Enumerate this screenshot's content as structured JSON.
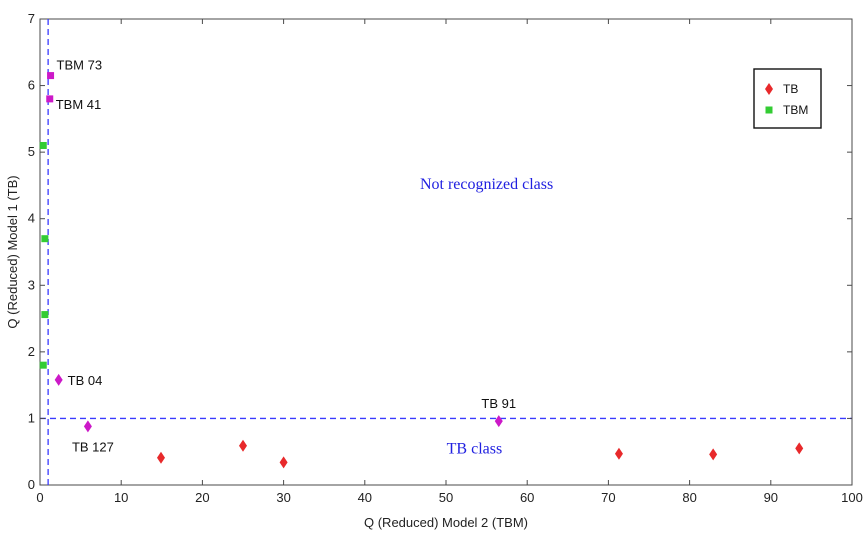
{
  "chart_data": {
    "type": "scatter",
    "title": "",
    "xlabel": "Q (Reduced) Model 2 (TBM)",
    "ylabel": "Q (Reduced) Model 1 (TB)",
    "xlim": [
      0,
      100
    ],
    "ylim": [
      0,
      7
    ],
    "x_ticks": [
      0,
      10,
      20,
      30,
      40,
      50,
      60,
      70,
      80,
      90,
      100
    ],
    "y_ticks": [
      0,
      1,
      2,
      3,
      4,
      5,
      6,
      7
    ],
    "grid": false,
    "legend_position": "top-right",
    "thresholds": {
      "x": 1,
      "y": 1,
      "color": "#3a3aff",
      "style": "dashed"
    },
    "series": [
      {
        "name": "TB",
        "marker": "diamond",
        "color": "#e8292b",
        "points": [
          {
            "x": 14.9,
            "y": 0.41
          },
          {
            "x": 25.0,
            "y": 0.59
          },
          {
            "x": 30.0,
            "y": 0.34
          },
          {
            "x": 71.3,
            "y": 0.47
          },
          {
            "x": 82.9,
            "y": 0.46
          },
          {
            "x": 93.5,
            "y": 0.55
          }
        ]
      },
      {
        "name": "TBM",
        "marker": "square",
        "color": "#33cc33",
        "points": [
          {
            "x": 0.4,
            "y": 5.1
          },
          {
            "x": 0.6,
            "y": 3.7
          },
          {
            "x": 0.6,
            "y": 2.56
          },
          {
            "x": 0.4,
            "y": 1.8
          }
        ]
      }
    ],
    "misclassified": {
      "color": "#cc19c8",
      "points": [
        {
          "label": "TBM 73",
          "x": 1.3,
          "y": 6.15,
          "marker": "square"
        },
        {
          "label": "TBM 41",
          "x": 1.2,
          "y": 5.8,
          "marker": "square"
        },
        {
          "label": "TB 04",
          "x": 2.3,
          "y": 1.58,
          "marker": "diamond"
        },
        {
          "label": "TB 127",
          "x": 5.9,
          "y": 0.88,
          "marker": "diamond"
        },
        {
          "label": "TB 91",
          "x": 56.5,
          "y": 0.96,
          "marker": "diamond"
        }
      ]
    },
    "annotations": [
      {
        "text": "Not recognized class",
        "x": 55,
        "y": 4.45,
        "color": "#2020e0"
      },
      {
        "text": "TB class",
        "x": 53.5,
        "y": 0.47,
        "color": "#2020e0"
      }
    ]
  }
}
